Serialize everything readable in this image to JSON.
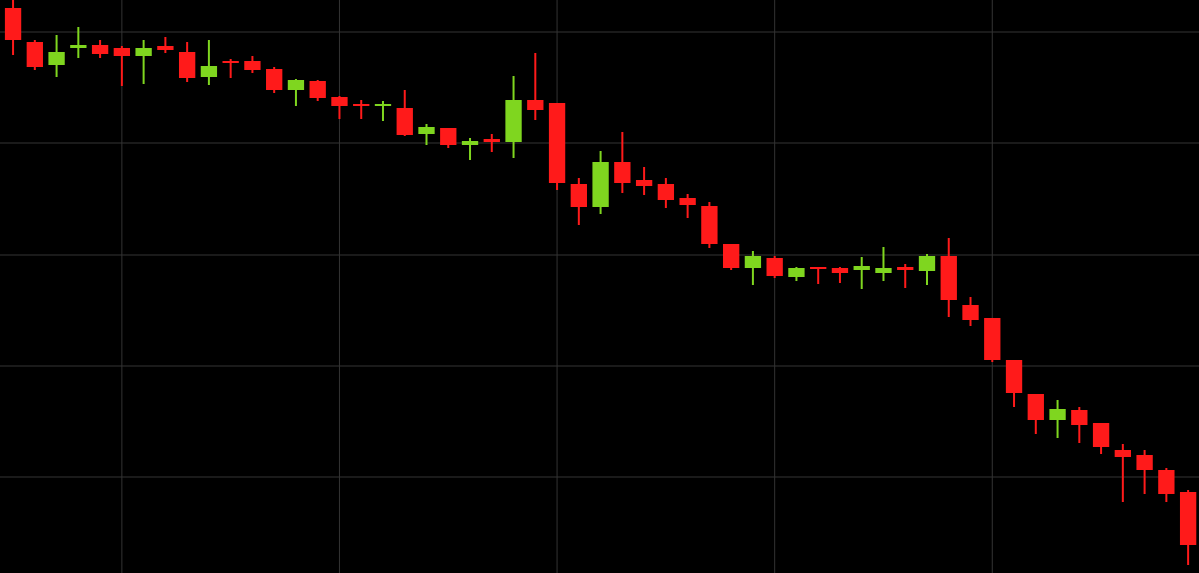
{
  "chart_data": {
    "type": "candlestick",
    "open": [
      565,
      531,
      508,
      525,
      528,
      525,
      517,
      527,
      521,
      496,
      512,
      512,
      504,
      483,
      492,
      476,
      469,
      467,
      465,
      439,
      445,
      428,
      434,
      431,
      473,
      470,
      389,
      366,
      411,
      393,
      389,
      375,
      367,
      329,
      305,
      315,
      296,
      306,
      305,
      303,
      300,
      306,
      302,
      317,
      268,
      255,
      213,
      179,
      153,
      163,
      150,
      123,
      118,
      103,
      81
    ],
    "high": [
      573,
      533,
      538,
      546,
      533,
      527,
      533,
      536,
      531,
      533,
      514,
      517,
      506,
      494,
      493,
      477,
      473,
      472,
      483,
      449,
      445,
      435,
      439,
      497,
      520,
      470,
      395,
      422,
      441,
      406,
      395,
      379,
      371,
      329,
      322,
      317,
      306,
      306,
      306,
      316,
      326,
      309,
      319,
      335,
      276,
      255,
      213,
      179,
      173,
      166,
      150,
      129,
      123,
      105,
      83
    ],
    "low": [
      518,
      503,
      496,
      515,
      515,
      487,
      489,
      520,
      491,
      488,
      495,
      500,
      480,
      467,
      472,
      454,
      454,
      452,
      437,
      428,
      425,
      413,
      421,
      415,
      453,
      383,
      348,
      359,
      380,
      378,
      365,
      355,
      325,
      303,
      288,
      295,
      292,
      289,
      290,
      284,
      292,
      285,
      288,
      256,
      247,
      211,
      166,
      139,
      135,
      130,
      119,
      71,
      79,
      71,
      8
    ],
    "close": [
      533,
      506,
      521,
      528,
      519,
      517,
      525,
      523,
      495,
      507,
      510,
      503,
      483,
      493,
      475,
      467,
      467,
      469,
      438,
      446,
      428,
      432,
      431,
      473,
      463,
      390,
      366,
      411,
      390,
      387,
      373,
      368,
      329,
      305,
      317,
      297,
      305,
      305,
      300,
      307,
      305,
      303,
      317,
      273,
      253,
      213,
      180,
      153,
      164,
      148,
      126,
      116,
      103,
      79,
      28
    ],
    "xlim": [
      -0.6,
      54.5
    ],
    "xticks": [
      5,
      15,
      25,
      35,
      45
    ],
    "ylim": [
      0,
      573
    ],
    "yticks": [
      96,
      207,
      318,
      430,
      541
    ],
    "grid": true,
    "up_color": "#7fd61f",
    "down_color": "#ff1a1a"
  }
}
